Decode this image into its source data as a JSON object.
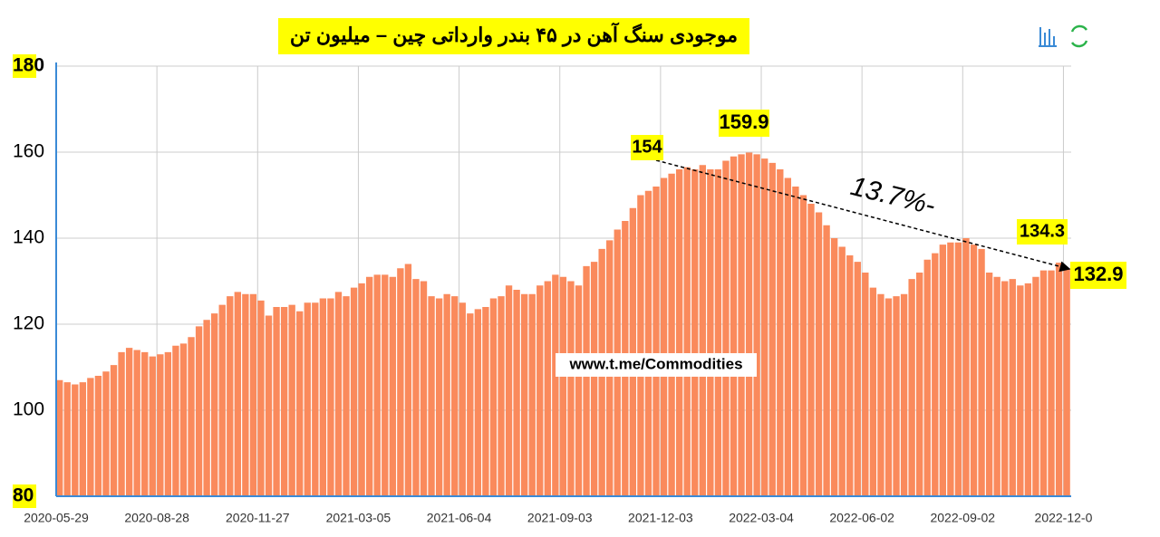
{
  "chart_data": {
    "type": "bar",
    "title": "موجودی سنگ آهن در ۴۵ بندر وارداتی چین – میلیون تن",
    "categories": [
      "2020-05-29",
      null,
      null,
      null,
      null,
      null,
      null,
      null,
      null,
      null,
      null,
      null,
      null,
      "2020-08-28",
      null,
      null,
      null,
      null,
      null,
      null,
      null,
      null,
      null,
      null,
      null,
      null,
      "2020-11-27",
      null,
      null,
      null,
      null,
      null,
      null,
      null,
      null,
      null,
      null,
      null,
      null,
      "2021-03-05",
      null,
      null,
      null,
      null,
      null,
      null,
      null,
      null,
      null,
      null,
      null,
      null,
      "2021-06-04",
      null,
      null,
      null,
      null,
      null,
      null,
      null,
      null,
      null,
      null,
      null,
      null,
      "2021-09-03",
      null,
      null,
      null,
      null,
      null,
      null,
      null,
      null,
      null,
      null,
      null,
      null,
      "2021-12-03",
      null,
      null,
      null,
      null,
      null,
      null,
      null,
      null,
      null,
      null,
      null,
      null,
      "2022-03-04",
      null,
      null,
      null,
      null,
      null,
      null,
      null,
      null,
      null,
      null,
      null,
      null,
      "2022-06-02",
      null,
      null,
      null,
      null,
      null,
      null,
      null,
      null,
      null,
      null,
      null,
      null,
      "2022-09-02",
      null,
      null,
      null,
      null,
      null,
      null,
      null,
      null,
      null,
      null,
      null,
      null,
      "2022-12-0"
    ],
    "values": [
      107,
      106.5,
      106,
      106.5,
      107.5,
      108,
      109,
      110.5,
      113.5,
      114.5,
      114,
      113.5,
      112.5,
      113,
      113.5,
      115,
      115.5,
      117,
      119.5,
      121,
      122.5,
      124.5,
      126.5,
      127.5,
      127,
      127,
      125.5,
      122,
      124,
      124,
      124.5,
      123,
      125,
      125,
      126,
      126,
      127.5,
      126.5,
      128.5,
      129.5,
      131,
      131.5,
      131.5,
      131,
      133,
      134,
      130.5,
      130,
      126.5,
      126,
      127,
      126.5,
      125,
      122.5,
      123.5,
      124,
      126,
      126.5,
      129,
      128,
      127,
      127,
      129,
      130,
      131.5,
      131,
      130,
      129,
      133.5,
      134.5,
      137.5,
      139.5,
      142,
      144,
      147,
      150,
      151,
      152,
      154,
      155,
      156,
      156.5,
      156,
      157,
      156,
      156,
      158,
      159,
      159.5,
      159.9,
      159.5,
      158.5,
      157.5,
      156,
      154,
      152,
      150,
      148,
      146,
      143,
      140,
      138,
      136,
      134.5,
      132,
      128.5,
      127,
      126,
      126.5,
      127,
      130.5,
      132,
      135,
      136.5,
      138.5,
      139,
      139,
      140,
      138.5,
      137.5,
      132,
      131,
      130,
      130.5,
      129,
      129.5,
      131,
      132.5,
      132.5,
      134.3,
      132.9
    ],
    "color": "#fa8a5c",
    "ylim": [
      80,
      180
    ],
    "yticks": [
      80,
      100,
      120,
      140,
      160,
      180
    ],
    "grid": true,
    "annotations": [
      "154",
      "159.9",
      "134.3",
      "132.9",
      "13.7%-",
      "www.t.me/Commodities"
    ]
  }
}
